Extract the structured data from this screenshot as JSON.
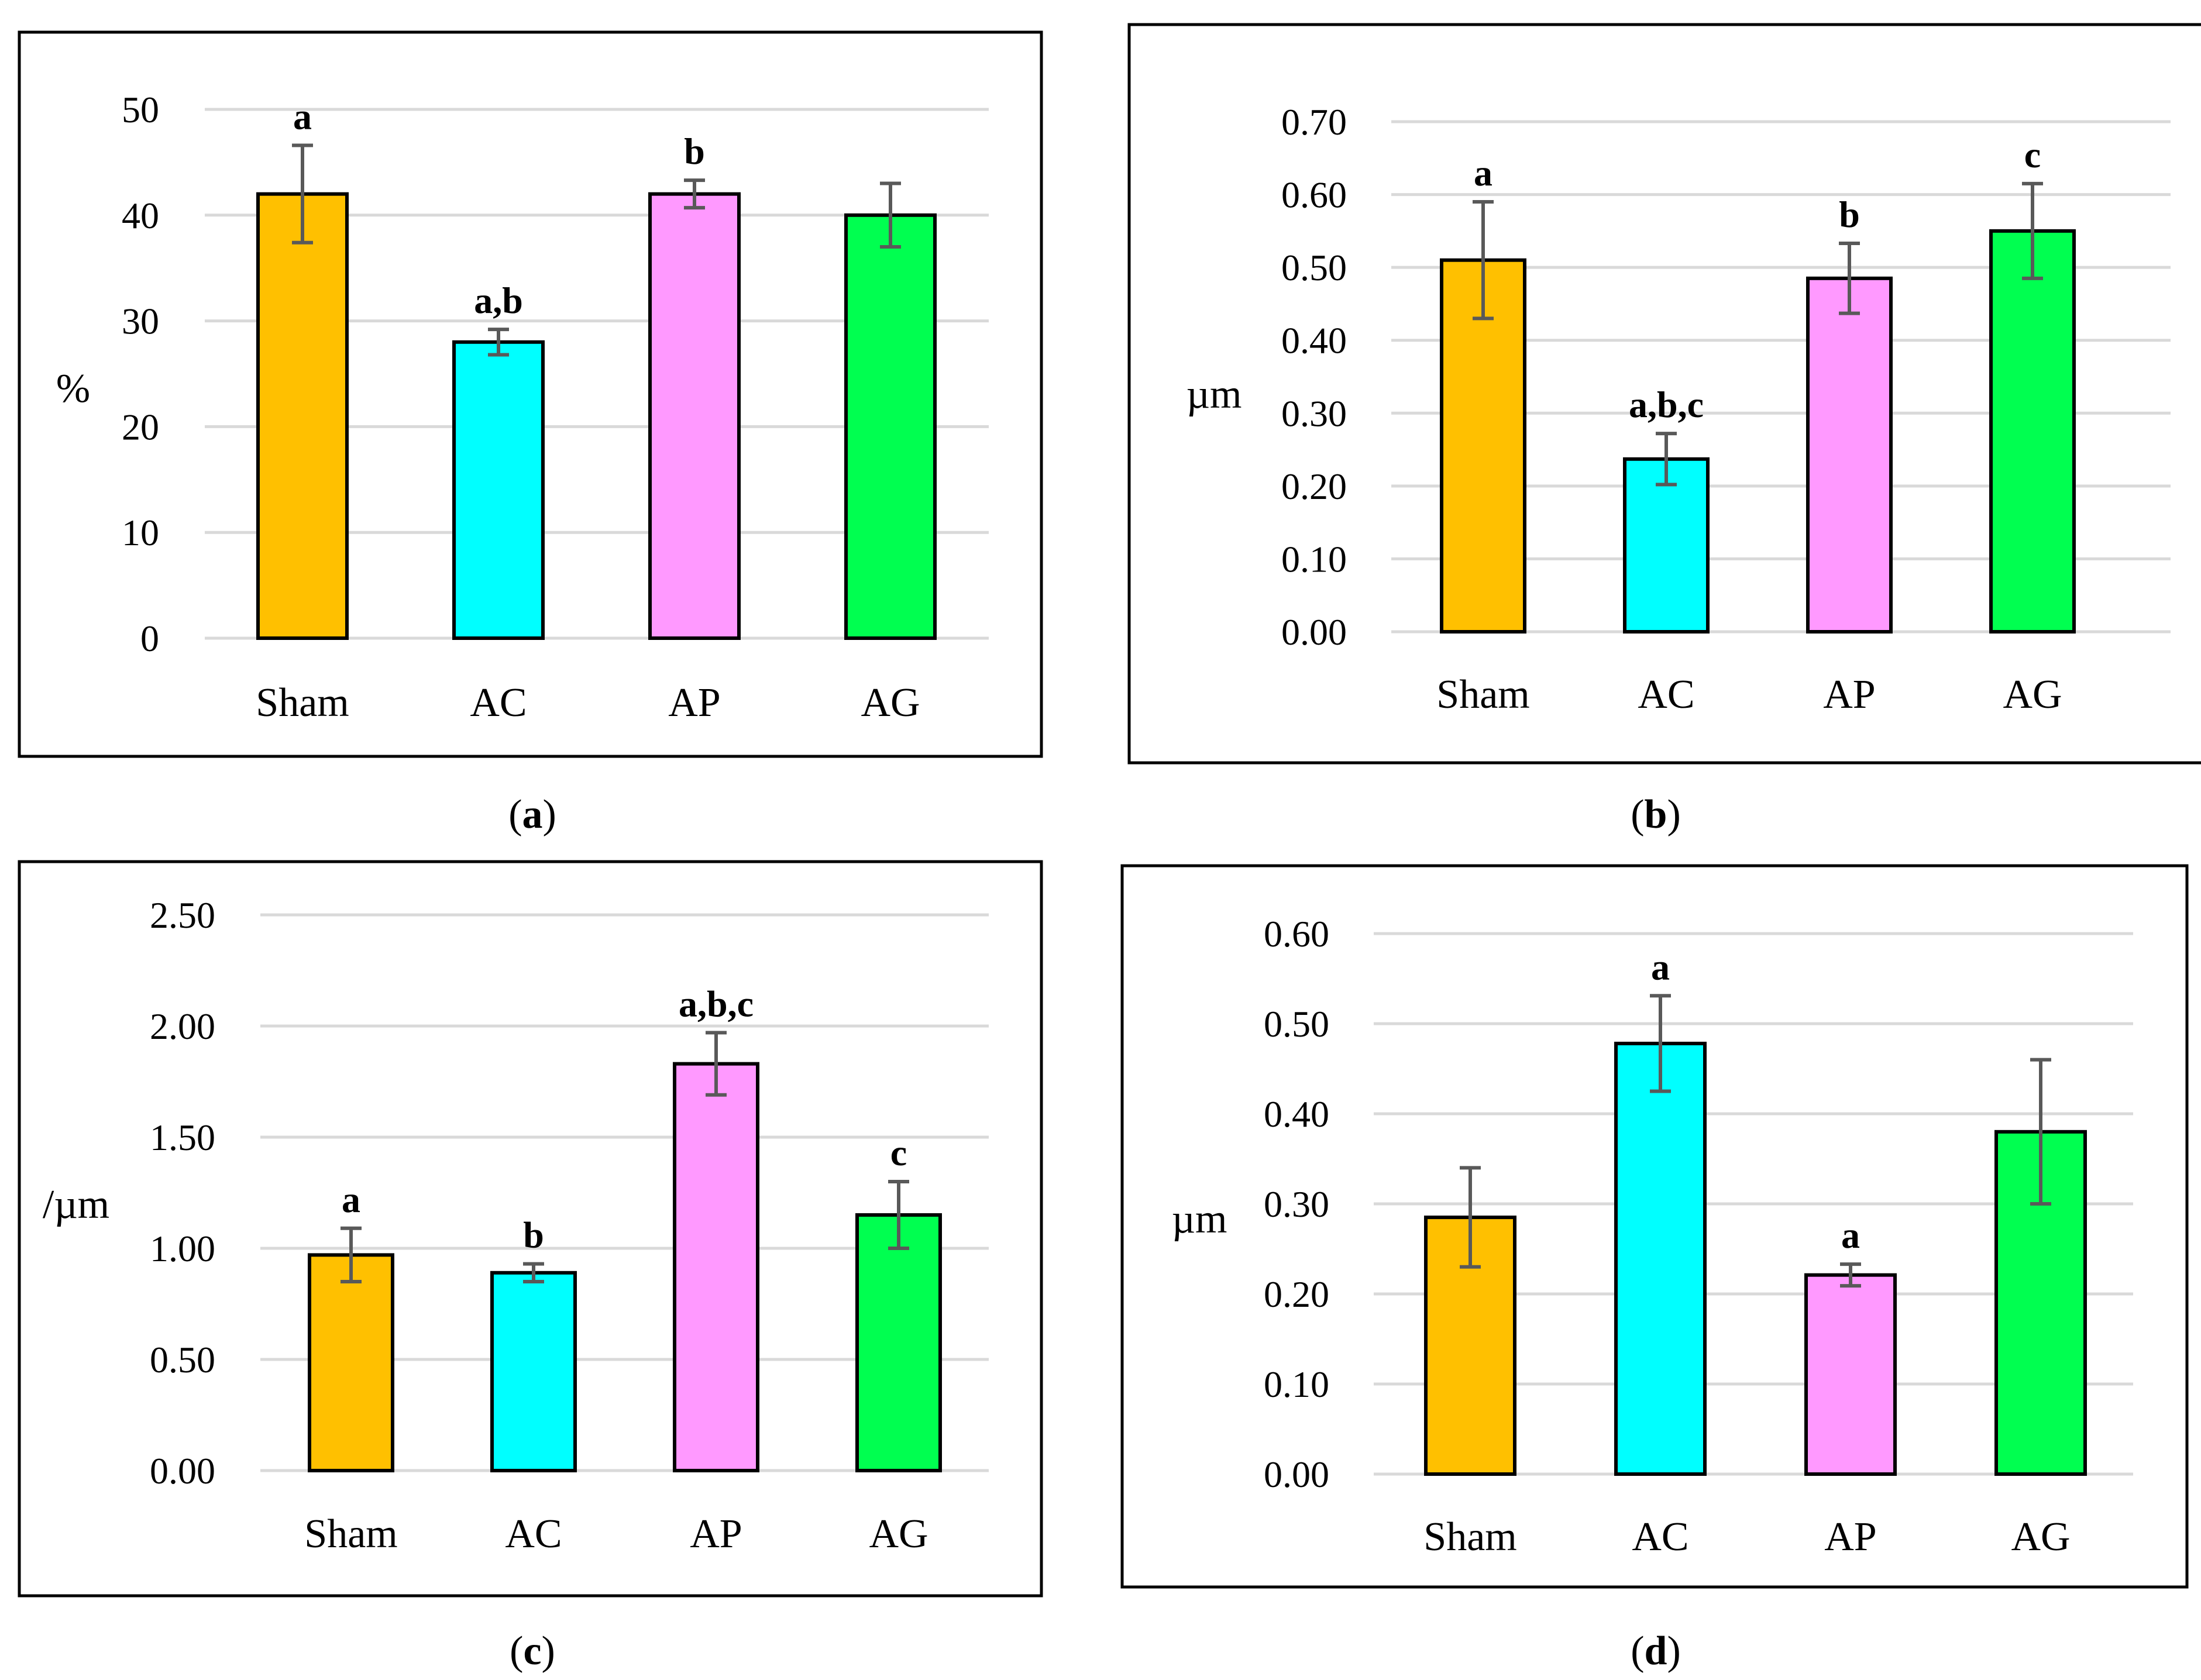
{
  "colors": {
    "Sham": "#ffc000",
    "AC": "#00ffff",
    "AP": "#ff99ff",
    "AG": "#00ff50"
  },
  "chart_data": [
    {
      "type": "bar",
      "panel_id": "a",
      "caption_letter": "a",
      "title": "",
      "ylabel": "%",
      "xlabel": "",
      "categories": [
        "Sham",
        "AC",
        "AP",
        "AG"
      ],
      "values": [
        42,
        28,
        42,
        40
      ],
      "errors": [
        4.6,
        1.2,
        1.3,
        3.0
      ],
      "significance": [
        "a",
        "a,b",
        "b",
        ""
      ],
      "ylim": [
        0,
        50
      ],
      "yticks": [
        "0",
        "10",
        "20",
        "30",
        "40",
        "50"
      ],
      "grid": true
    },
    {
      "type": "bar",
      "panel_id": "b",
      "caption_letter": "b",
      "title": "",
      "ylabel": "µm",
      "xlabel": "",
      "categories": [
        "Sham",
        "AC",
        "AP",
        "AG"
      ],
      "values": [
        0.51,
        0.237,
        0.485,
        0.55
      ],
      "errors": [
        0.08,
        0.035,
        0.048,
        0.065
      ],
      "significance": [
        "a",
        "a,b,c",
        "b",
        "c"
      ],
      "ylim": [
        0,
        0.7
      ],
      "yticks": [
        "0.00",
        "0.10",
        "0.20",
        "0.30",
        "0.40",
        "0.50",
        "0.60",
        "0.70"
      ],
      "grid": true
    },
    {
      "type": "bar",
      "panel_id": "c",
      "caption_letter": "c",
      "title": "",
      "ylabel": "/µm",
      "xlabel": "",
      "categories": [
        "Sham",
        "AC",
        "AP",
        "AG"
      ],
      "values": [
        0.97,
        0.89,
        1.83,
        1.15
      ],
      "errors": [
        0.12,
        0.04,
        0.14,
        0.15
      ],
      "significance": [
        "a",
        "b",
        "a,b,c",
        "c"
      ],
      "ylim": [
        0,
        2.5
      ],
      "yticks": [
        "0.00",
        "0.50",
        "1.00",
        "1.50",
        "2.00",
        "2.50"
      ],
      "grid": true
    },
    {
      "type": "bar",
      "panel_id": "d",
      "caption_letter": "d",
      "title": "",
      "ylabel": "µm",
      "xlabel": "",
      "categories": [
        "Sham",
        "AC",
        "AP",
        "AG"
      ],
      "values": [
        0.285,
        0.478,
        0.221,
        0.38
      ],
      "errors": [
        0.055,
        0.053,
        0.012,
        0.08
      ],
      "significance": [
        "",
        "a",
        "a",
        ""
      ],
      "ylim": [
        0,
        0.6
      ],
      "yticks": [
        "0.00",
        "0.10",
        "0.20",
        "0.30",
        "0.40",
        "0.50",
        "0.60"
      ],
      "grid": true
    }
  ]
}
